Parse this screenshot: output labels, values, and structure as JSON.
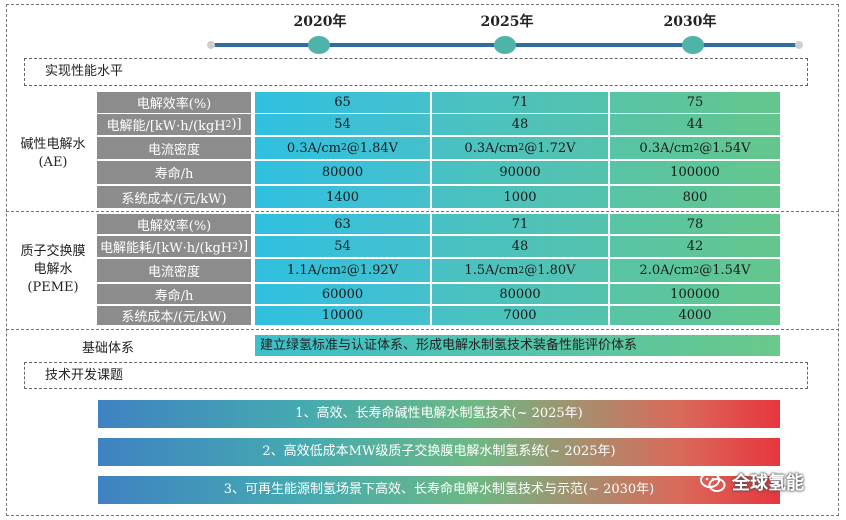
{
  "timeline": {
    "years": [
      "2020年",
      "2025年",
      "2030年"
    ]
  },
  "sections": {
    "performance": "实现性能水平",
    "foundation_label": "基础体系",
    "foundation_text": "建立绿氢标准与认证体系、形成电解水制氢技术装备性能评价体系",
    "tech_topics": "技术开发课题"
  },
  "ae": {
    "title_line1": "碱性电解水",
    "title_line2": "(AE)",
    "rows": [
      {
        "label": "电解效率(%)",
        "values": [
          "65",
          "71",
          "75"
        ]
      },
      {
        "label": "电解能/[kW·h/(kgH2)]",
        "values": [
          "54",
          "48",
          "44"
        ]
      },
      {
        "label": "电流密度",
        "values": [
          "0.3A/cm2@1.84V",
          "0.3A/cm2@1.72V",
          "0.3A/cm2@1.54V"
        ]
      },
      {
        "label": "寿命/h",
        "values": [
          "80000",
          "90000",
          "100000"
        ]
      },
      {
        "label": "系统成本/(元/kW)",
        "values": [
          "1400",
          "1000",
          "800"
        ]
      }
    ]
  },
  "peme": {
    "title_line1": "质子交换膜",
    "title_line2": "电解水",
    "title_line3": "(PEME)",
    "rows": [
      {
        "label": "电解效率(%)",
        "values": [
          "63",
          "71",
          "78"
        ]
      },
      {
        "label": "电解能耗/[kW·h/(kgH2)]",
        "values": [
          "54",
          "48",
          "42"
        ]
      },
      {
        "label": "电流密度",
        "values": [
          "1.1A/cm2@1.92V",
          "1.5A/cm2@1.80V",
          "2.0A/cm2@1.54V"
        ]
      },
      {
        "label": "寿命/h",
        "values": [
          "60000",
          "80000",
          "100000"
        ]
      },
      {
        "label": "系统成本/(元/kW)",
        "values": [
          "10000",
          "7000",
          "4000"
        ]
      }
    ]
  },
  "topics": [
    "1、高效、长寿命碱性电解水制氢技术(~ 2025年)",
    "2、高效低成本MW级质子交换膜电解水制氢系统(~ 2025年)",
    "3、可再生能源制氢场景下高效、长寿命电解水制氢技术与示范(~ 2030年)"
  ],
  "watermark": {
    "text": "全球氢能",
    "icon": "wechat-icon"
  },
  "colors": {
    "timeline_line": "#2f6f9f",
    "timeline_dot": "#4fb3aa",
    "label_gray": "#8c8c8c",
    "topic_start": "#3f82c2",
    "topic_end": "#e7363f"
  }
}
